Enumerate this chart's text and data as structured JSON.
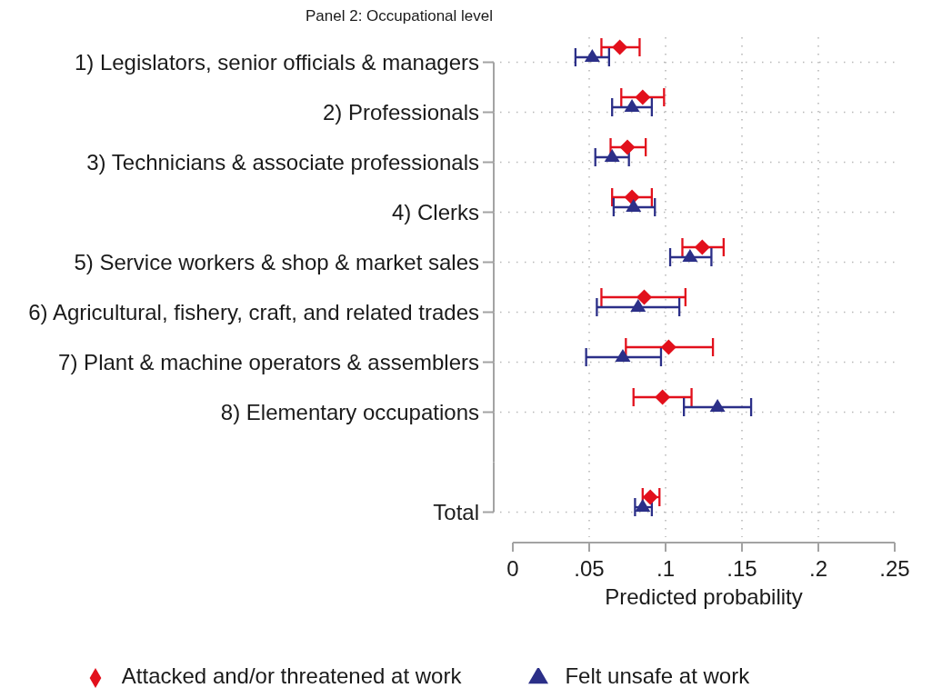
{
  "chart_data": {
    "type": "scatter",
    "orientation": "horizontal",
    "title": "Panel 2: Occupational level",
    "xlabel": "Predicted probability",
    "categories": [
      "1) Legislators, senior officials & managers",
      "2) Professionals",
      "3) Technicians & associate professionals",
      "4) Clerks",
      "5) Service workers & shop & market sales",
      "6) Agricultural, fishery, craft, and related trades",
      "7) Plant & machine operators & assemblers",
      "8) Elementary occupations",
      null,
      "Total"
    ],
    "series": [
      {
        "name": "Attacked and/or threatened at work",
        "color": "#e2101c",
        "marker": "diamond",
        "values": [
          0.07,
          0.085,
          0.075,
          0.078,
          0.124,
          0.086,
          0.102,
          0.098,
          null,
          0.09
        ],
        "errors": [
          [
            0.058,
            0.083
          ],
          [
            0.071,
            0.099
          ],
          [
            0.064,
            0.087
          ],
          [
            0.065,
            0.091
          ],
          [
            0.111,
            0.138
          ],
          [
            0.058,
            0.113
          ],
          [
            0.074,
            0.131
          ],
          [
            0.079,
            0.117
          ],
          null,
          [
            0.085,
            0.096
          ]
        ]
      },
      {
        "name": "Felt unsafe at work",
        "color": "#2b2f88",
        "marker": "triangle",
        "values": [
          0.052,
          0.078,
          0.065,
          0.079,
          0.116,
          0.082,
          0.072,
          0.134,
          null,
          0.085
        ],
        "errors": [
          [
            0.041,
            0.063
          ],
          [
            0.065,
            0.091
          ],
          [
            0.054,
            0.076
          ],
          [
            0.066,
            0.093
          ],
          [
            0.103,
            0.13
          ],
          [
            0.055,
            0.109
          ],
          [
            0.048,
            0.097
          ],
          [
            0.112,
            0.156
          ],
          null,
          [
            0.08,
            0.091
          ]
        ]
      }
    ],
    "xlim": [
      0,
      0.25
    ],
    "xticks": [
      0,
      {
        "value": 0.05,
        "label": ".05"
      },
      {
        "value": 0.1,
        "label": ".1"
      },
      {
        "value": 0.15,
        "label": ".15"
      },
      {
        "value": 0.2,
        "label": ".2"
      },
      {
        "value": 0.25,
        "label": ".25"
      }
    ],
    "grid": true,
    "legend": "bottom"
  }
}
